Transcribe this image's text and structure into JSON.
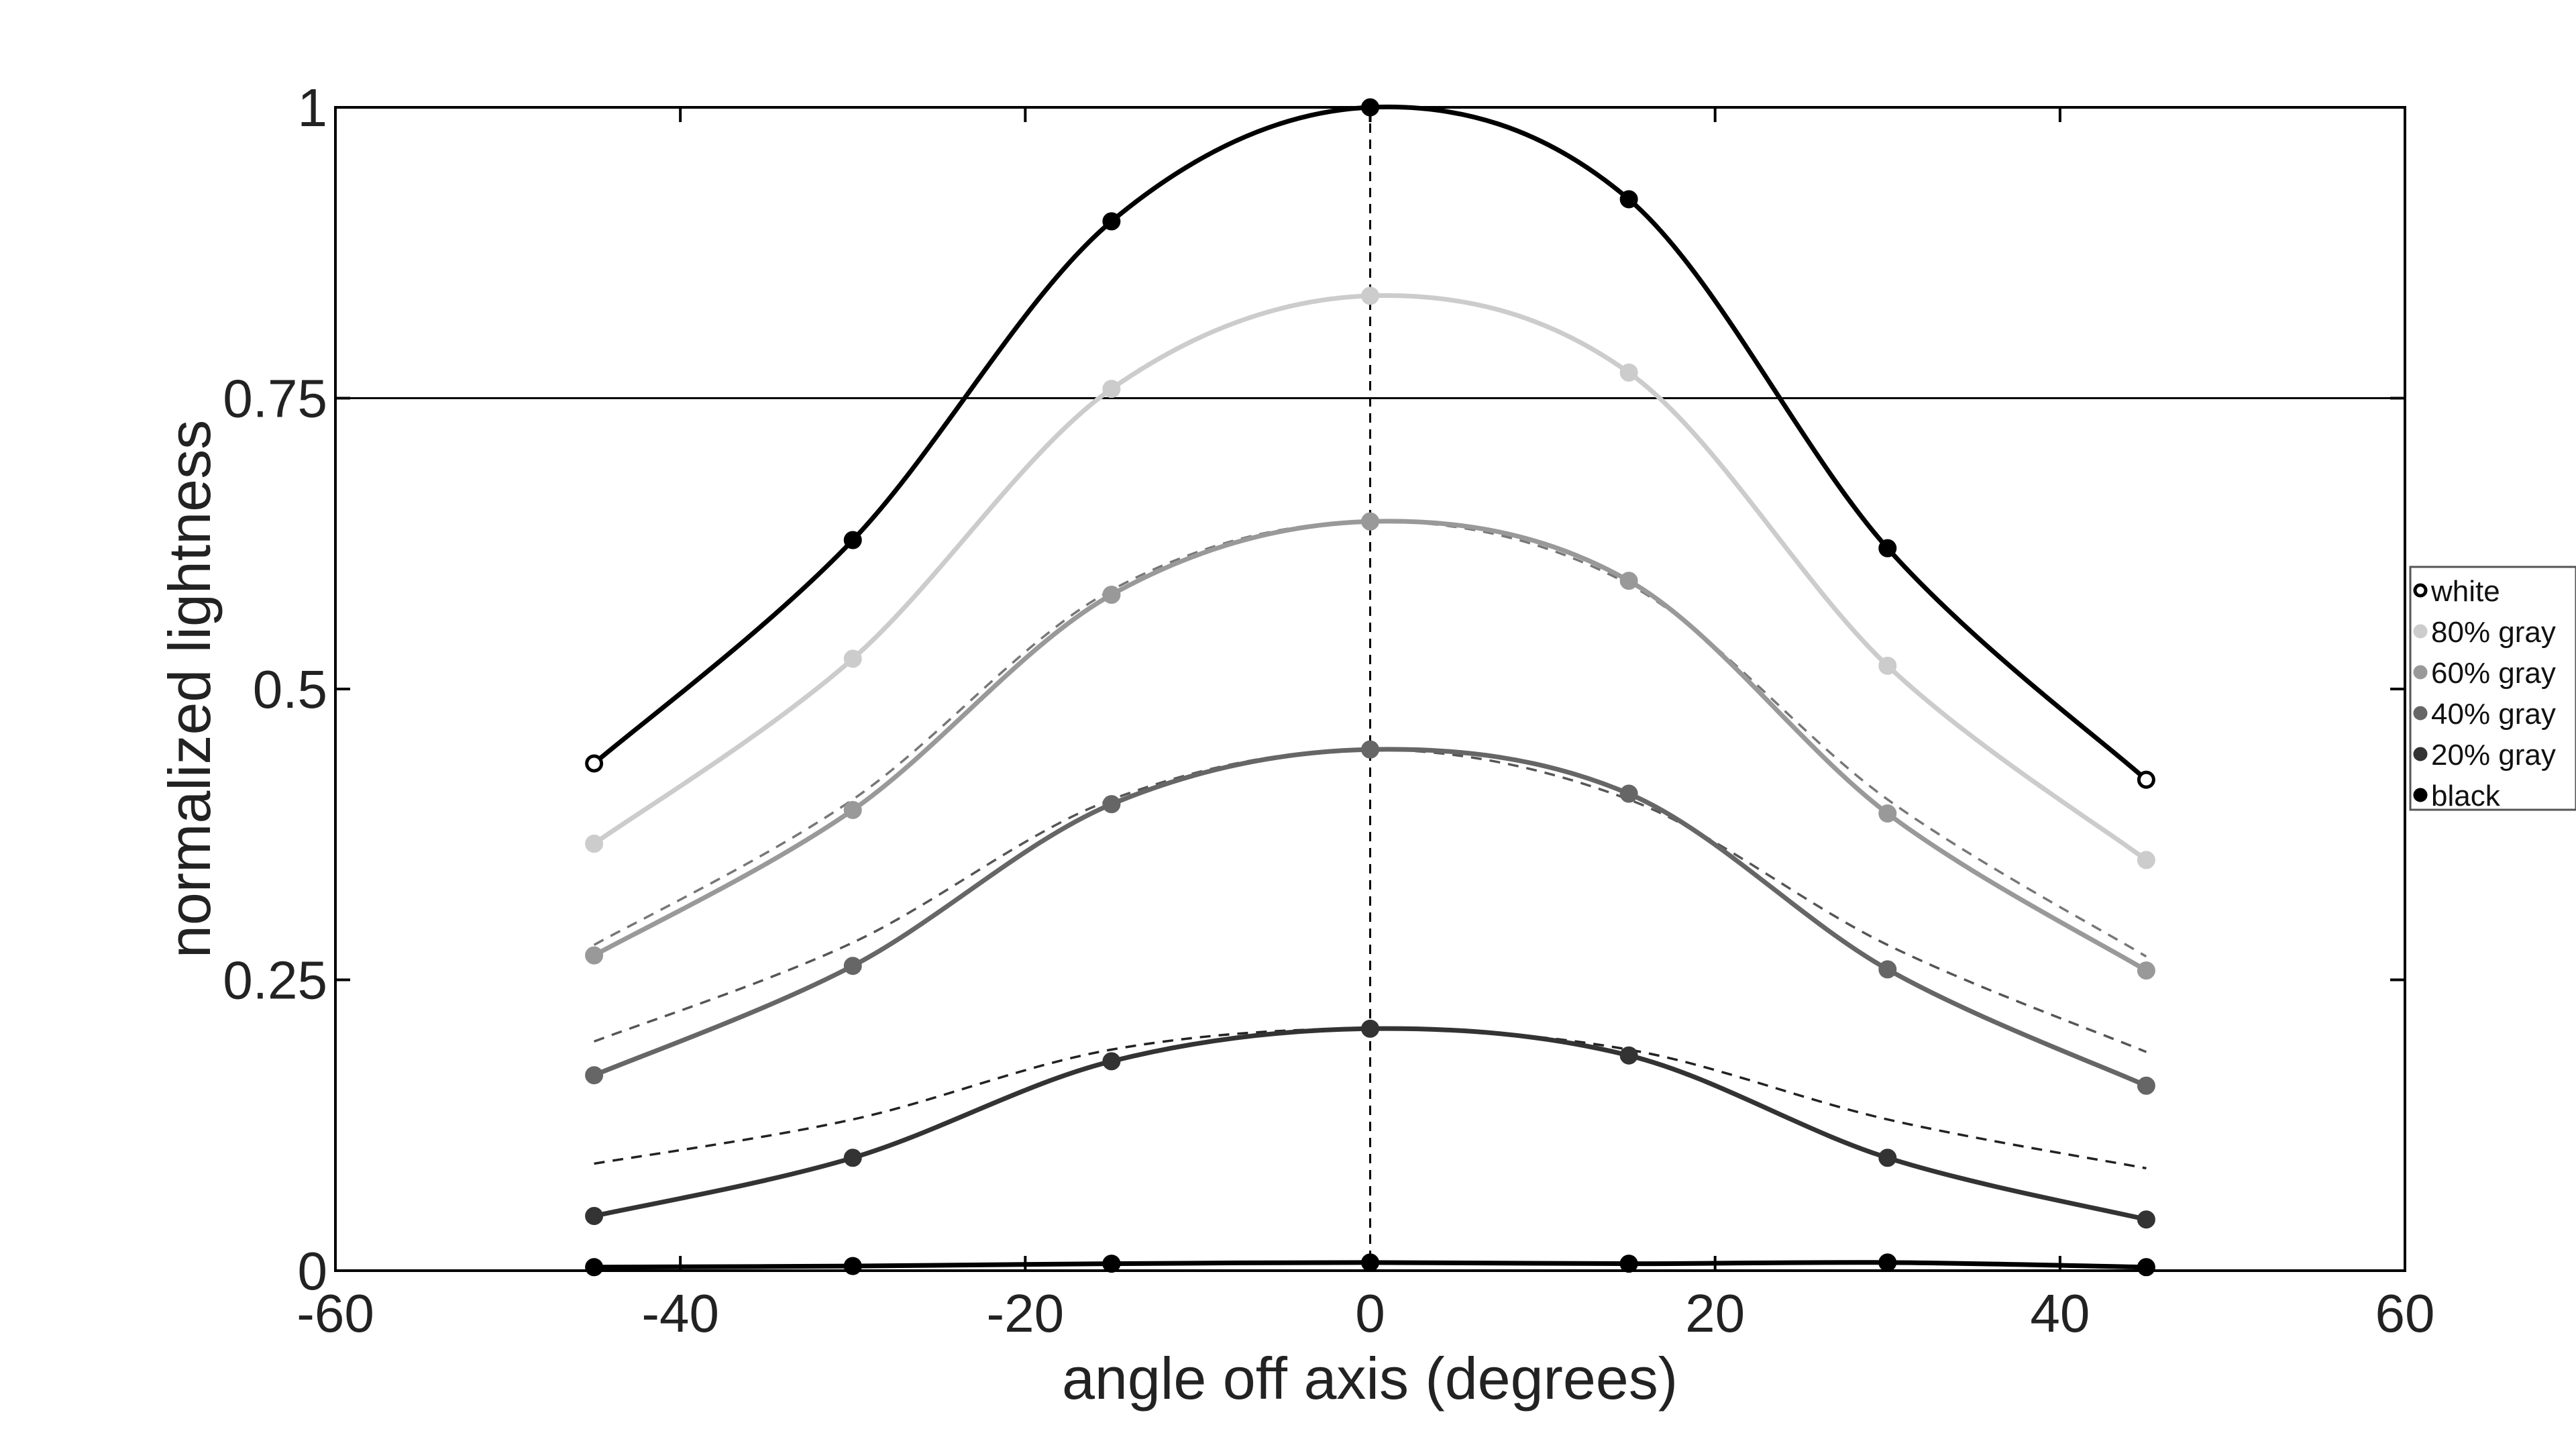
{
  "chart_data": {
    "type": "line",
    "xlabel": "angle off axis (degrees)",
    "ylabel": "normalized lightness",
    "xlim": [
      -60,
      60
    ],
    "ylim": [
      0,
      1
    ],
    "xticks": [
      -60,
      -40,
      -20,
      0,
      20,
      40,
      60
    ],
    "xtick_labels": [
      "-60",
      "-40",
      "-20",
      "0",
      "20",
      "40",
      "60"
    ],
    "yticks": [
      0,
      0.25,
      0.5,
      0.75,
      1
    ],
    "ytick_labels": [
      "0",
      "0.25",
      "0.5",
      "0.75",
      "1"
    ],
    "reference_line_y": 0.75,
    "reference_line_x": 0,
    "grid": false,
    "legend_position": "right",
    "x": [
      -45,
      -30,
      -15,
      0,
      15,
      30,
      45
    ],
    "series": [
      {
        "name": "white",
        "color": "#000000",
        "values": [
          0.436,
          0.628,
          0.902,
          1.0,
          0.921,
          0.621,
          0.422
        ]
      },
      {
        "name": "80% gray",
        "color": "#cccccc",
        "values": [
          0.367,
          0.526,
          0.758,
          0.838,
          0.772,
          0.52,
          0.353
        ]
      },
      {
        "name": "60% gray",
        "color": "#999999",
        "values": [
          0.271,
          0.396,
          0.581,
          0.644,
          0.593,
          0.393,
          0.258
        ]
      },
      {
        "name": "40% gray",
        "color": "#666666",
        "values": [
          0.168,
          0.262,
          0.401,
          0.448,
          0.41,
          0.259,
          0.159
        ]
      },
      {
        "name": "20% gray",
        "color": "#333333",
        "values": [
          0.047,
          0.097,
          0.18,
          0.208,
          0.185,
          0.097,
          0.044
        ]
      },
      {
        "name": "black",
        "color": "#000000",
        "values": [
          0.003,
          0.004,
          0.006,
          0.007,
          0.006,
          0.007,
          0.003
        ]
      }
    ],
    "reference_curves": [
      {
        "color": "#777777",
        "values": [
          0.28,
          0.405,
          0.585,
          0.644,
          0.59,
          0.405,
          0.27
        ]
      },
      {
        "color": "#555555",
        "values": [
          0.197,
          0.282,
          0.405,
          0.448,
          0.405,
          0.28,
          0.188
        ]
      },
      {
        "color": "#222222",
        "values": [
          0.092,
          0.13,
          0.19,
          0.208,
          0.19,
          0.13,
          0.088
        ]
      }
    ]
  }
}
